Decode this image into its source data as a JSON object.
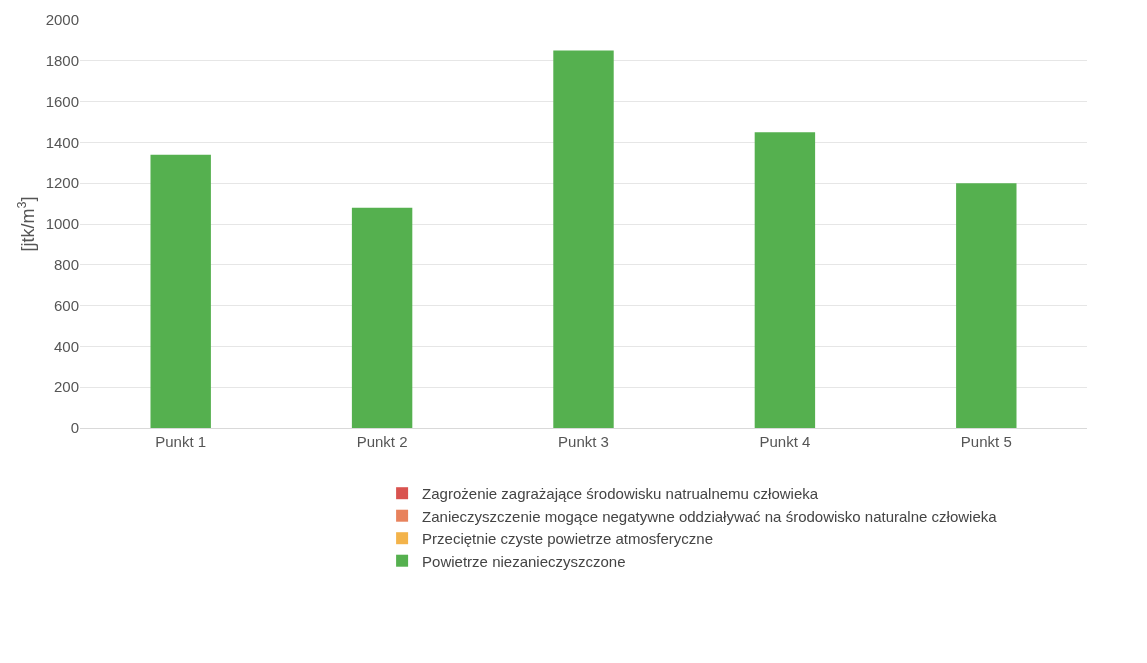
{
  "chart_data": {
    "type": "bar",
    "ylabel": "[jtk/m$^{3}$]",
    "categories": [
      "Punkt 1",
      "Punkt 2",
      "Punkt 3",
      "Punkt 4",
      "Punkt 5"
    ],
    "series": [
      {
        "name": "Zagrożenie zagrażające środowisku natrualnemu człowieka",
        "color": "#d9534f",
        "values": [
          null,
          null,
          null,
          null,
          null
        ]
      },
      {
        "name": "Zanieczyszczenie mogące negatywne oddziaływać na środowisko naturalne człowieka",
        "color": "#e8825c",
        "values": [
          null,
          null,
          null,
          null,
          null
        ]
      },
      {
        "name": "Przeciętnie czyste powietrze atmosferyczne",
        "color": "#f3b34a",
        "values": [
          null,
          null,
          null,
          null,
          null
        ]
      },
      {
        "name": "Powietrze niezanieczyszczone",
        "color": "#55b04f",
        "values": [
          1340,
          1080,
          1850,
          1450,
          1200
        ]
      }
    ],
    "ylim": [
      0,
      2000
    ],
    "yticks": [
      0,
      200,
      400,
      600,
      800,
      1000,
      1200,
      1400,
      1600,
      1800,
      2000
    ],
    "grid": "y",
    "legend": "bottom"
  }
}
